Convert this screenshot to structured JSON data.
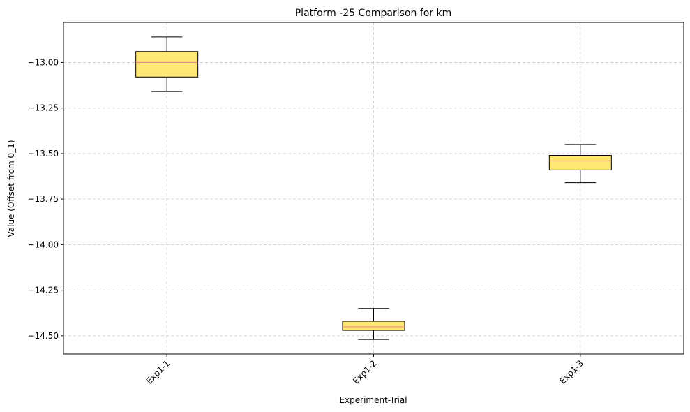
{
  "chart_data": {
    "type": "box",
    "title": "Platform -25 Comparison for km",
    "xlabel": "Experiment-Trial",
    "ylabel": "Value (Offset from 0_1)",
    "categories": [
      "Exp1-1",
      "Exp1-2",
      "Exp1-3"
    ],
    "boxes": [
      {
        "whisker_low": -13.16,
        "q1": -13.08,
        "median": -13.0,
        "q3": -12.94,
        "whisker_high": -12.86
      },
      {
        "whisker_low": -14.52,
        "q1": -14.47,
        "median": -14.45,
        "q3": -14.42,
        "whisker_high": -14.35
      },
      {
        "whisker_low": -13.66,
        "q1": -13.59,
        "median": -13.54,
        "q3": -13.51,
        "whisker_high": -13.45
      }
    ],
    "yticks": [
      -13.0,
      -13.25,
      -13.5,
      -13.75,
      -14.0,
      -14.25,
      -14.5
    ],
    "ytick_labels": [
      "−13.00",
      "−13.25",
      "−13.50",
      "−13.75",
      "−14.00",
      "−14.25",
      "−14.50"
    ],
    "ylim": [
      -14.6,
      -12.78
    ],
    "grid": true,
    "colors": {
      "box_fill": "#ffe873",
      "box_edge": "#000000",
      "median": "#f08080",
      "grid": "#c8c8c8"
    }
  }
}
